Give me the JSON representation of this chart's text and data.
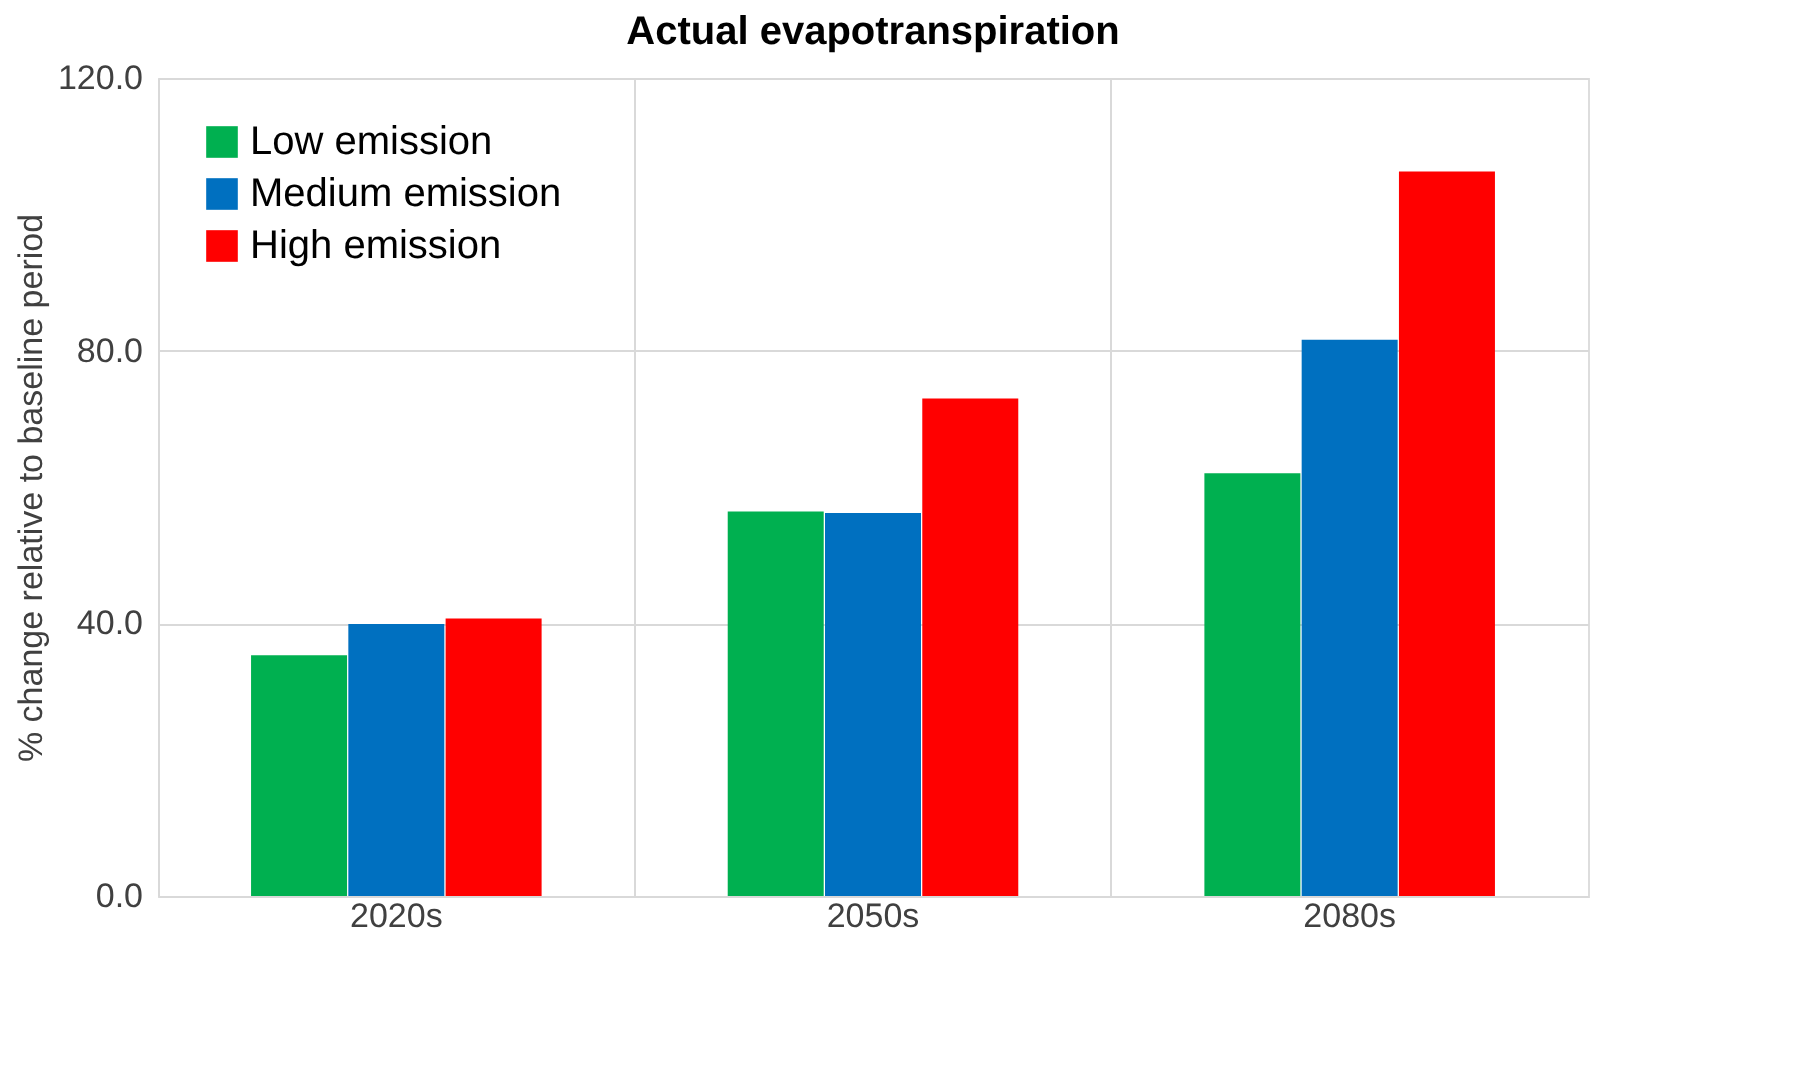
{
  "chart_data": {
    "type": "bar",
    "title": "Actual evapotranspiration",
    "ylabel": "% change relative to baseline period",
    "categories": [
      "2020s",
      "2050s",
      "2080s"
    ],
    "series": [
      {
        "name": "Low emission",
        "color": "#00b050",
        "values": [
          35.3,
          56.4,
          62.0
        ]
      },
      {
        "name": "Medium emission",
        "color": "#0070c0",
        "values": [
          39.9,
          56.2,
          81.6
        ]
      },
      {
        "name": "High emission",
        "color": "#ff0000",
        "values": [
          40.7,
          73.0,
          106.3
        ]
      }
    ],
    "ylim": [
      0,
      120
    ],
    "yticks": [
      {
        "value": 0,
        "label": "0.0"
      },
      {
        "value": 40,
        "label": "40.0"
      },
      {
        "value": 80,
        "label": "80.0"
      },
      {
        "value": 120,
        "label": "120.0"
      }
    ],
    "grid": true,
    "legend": "top left"
  }
}
